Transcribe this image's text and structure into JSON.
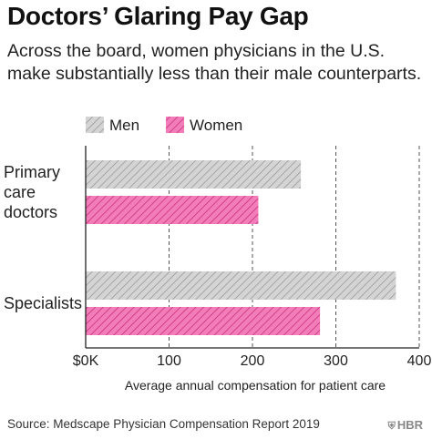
{
  "title": "Doctors’ Glaring Pay Gap",
  "subtitle": "Across the board, women physicians in the U.S. make substantially less than their male counterparts.",
  "source": "Source: Medscape Physician Compensation Report 2019",
  "logo": {
    "text": "HBR",
    "icon": "hbr-shield-icon"
  },
  "colors": {
    "men": "#bdbdbd",
    "women": "#e0519a"
  },
  "chart_data": {
    "type": "bar",
    "orientation": "horizontal",
    "categories": [
      "Primary care doctors",
      "Specialists"
    ],
    "category_labels": [
      [
        "Primary",
        "care",
        "doctors"
      ],
      [
        "Specialists"
      ]
    ],
    "series": [
      {
        "name": "Men",
        "values": [
          258,
          372
        ]
      },
      {
        "name": "Women",
        "values": [
          207,
          281
        ]
      }
    ],
    "xlabel": "Average annual compensation for patient care",
    "ylabel": "",
    "xlim": [
      0,
      400
    ],
    "ticks": [
      0,
      100,
      200,
      300,
      400
    ],
    "tick_labels": [
      "$0K",
      "100",
      "200",
      "300",
      "400"
    ],
    "grid": true,
    "legend": "top-left"
  }
}
